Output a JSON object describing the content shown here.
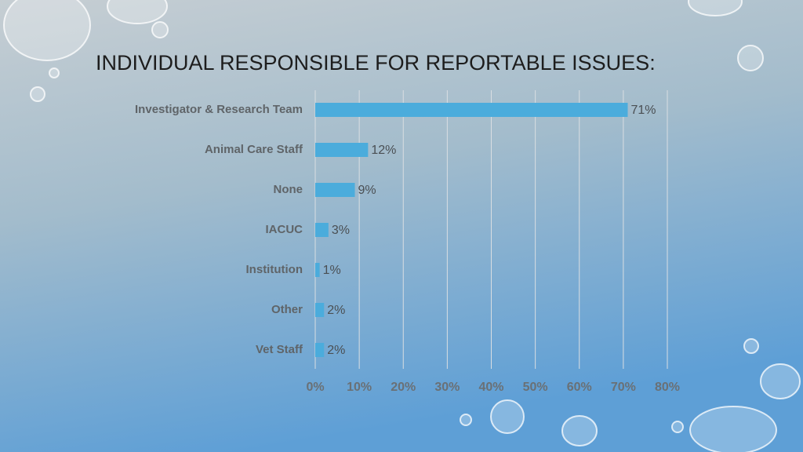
{
  "chart_data": {
    "type": "bar",
    "orientation": "horizontal",
    "title": "INDIVIDUAL RESPONSIBLE FOR REPORTABLE ISSUES:",
    "categories": [
      "Investigator & Research Team",
      "Animal Care Staff",
      "None",
      "IACUC",
      "Institution",
      "Other",
      "Vet Staff"
    ],
    "values": [
      71,
      12,
      9,
      3,
      1,
      2,
      2
    ],
    "value_labels": [
      "71%",
      "12%",
      "9%",
      "3%",
      "1%",
      "2%",
      "2%"
    ],
    "color": "#4bacdc",
    "xlim": [
      0,
      80
    ],
    "xticks": [
      {
        "value": 0,
        "label": "0%"
      },
      {
        "value": 10,
        "label": "10%"
      },
      {
        "value": 20,
        "label": "20%"
      },
      {
        "value": 30,
        "label": "30%"
      },
      {
        "value": 40,
        "label": "40%"
      },
      {
        "value": 50,
        "label": "50%"
      },
      {
        "value": 60,
        "label": "60%"
      },
      {
        "value": 70,
        "label": "70%"
      },
      {
        "value": 80,
        "label": "80%"
      }
    ],
    "grid": true
  }
}
